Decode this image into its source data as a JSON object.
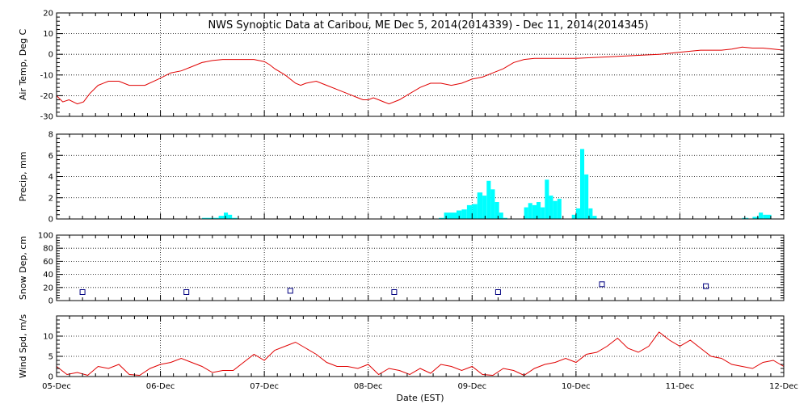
{
  "title": "NWS Synoptic Data at Caribou, ME   Dec  5, 2014(2014339) - Dec 11, 2014(2014345)",
  "xlabel": "Date (EST)",
  "x_ticks": [
    "05-Dec",
    "06-Dec",
    "07-Dec",
    "08-Dec",
    "09-Dec",
    "10-Dec",
    "11-Dec",
    "12-Dec"
  ],
  "colors": {
    "air_temp": "#e00000",
    "precip": "#00ffff",
    "snow": "#000080",
    "wind": "#e00000"
  },
  "chart_data": [
    {
      "type": "line",
      "id": "air-temp",
      "ylabel": "Air Temp, Deg C",
      "ylim": [
        -30,
        20
      ],
      "yticks": [
        -30,
        -20,
        -10,
        0,
        10,
        20
      ],
      "x_units": "days since 05-Dec 00:00 EST",
      "x": [
        0.0,
        0.06,
        0.12,
        0.2,
        0.26,
        0.32,
        0.4,
        0.5,
        0.6,
        0.7,
        0.85,
        0.98,
        1.1,
        1.2,
        1.3,
        1.4,
        1.5,
        1.6,
        1.7,
        1.8,
        1.9,
        2.0,
        2.05,
        2.1,
        2.2,
        2.3,
        2.35,
        2.4,
        2.5,
        2.6,
        2.7,
        2.8,
        2.9,
        2.95,
        3.0,
        3.05,
        3.1,
        3.15,
        3.2,
        3.3,
        3.4,
        3.5,
        3.6,
        3.7,
        3.8,
        3.9,
        4.0,
        4.1,
        4.2,
        4.3,
        4.4,
        4.5,
        4.6,
        4.8,
        5.0,
        5.2,
        5.4,
        5.6,
        5.8,
        6.0,
        6.2,
        6.4,
        6.5,
        6.6,
        6.7,
        6.8,
        6.9,
        7.0
      ],
      "values": [
        -20,
        -23,
        -22,
        -24,
        -23,
        -19,
        -15,
        -13,
        -13,
        -15,
        -15,
        -12,
        -9,
        -8,
        -6,
        -4,
        -3,
        -2.5,
        -2.5,
        -2.5,
        -2.5,
        -3.5,
        -5,
        -7,
        -10,
        -14,
        -15,
        -14,
        -13,
        -15,
        -17,
        -19,
        -21,
        -22,
        -22,
        -21,
        -22,
        -23,
        -24,
        -22,
        -19,
        -16,
        -14,
        -14,
        -15,
        -14,
        -12,
        -11,
        -9,
        -7,
        -4,
        -2.5,
        -2,
        -2,
        -2,
        -1.5,
        -1,
        -0.5,
        0,
        1,
        2,
        2,
        2.5,
        3.5,
        3,
        3,
        2.5,
        2
      ]
    },
    {
      "type": "bar",
      "id": "precip",
      "ylabel": "Precip, mm",
      "ylim": [
        0,
        8
      ],
      "yticks": [
        0,
        2,
        4,
        6,
        8
      ],
      "x_units": "days since 05-Dec 00:00 EST",
      "bars": [
        [
          1.4,
          1.56,
          0.1
        ],
        [
          1.56,
          1.61,
          0.3
        ],
        [
          1.61,
          1.65,
          0.6
        ],
        [
          1.65,
          1.69,
          0.4
        ],
        [
          1.69,
          1.74,
          0.1
        ],
        [
          3.68,
          3.73,
          0.1
        ],
        [
          3.73,
          3.85,
          0.6
        ],
        [
          3.85,
          3.9,
          0.8
        ],
        [
          3.9,
          3.95,
          0.9
        ],
        [
          3.95,
          4.0,
          1.3
        ],
        [
          4.0,
          4.05,
          1.4
        ],
        [
          4.05,
          4.1,
          2.5
        ],
        [
          4.1,
          4.14,
          2.2
        ],
        [
          4.14,
          4.18,
          3.6
        ],
        [
          4.18,
          4.22,
          2.8
        ],
        [
          4.22,
          4.26,
          1.6
        ],
        [
          4.26,
          4.3,
          0.6
        ],
        [
          4.3,
          4.34,
          0.1
        ],
        [
          4.5,
          4.54,
          1.1
        ],
        [
          4.54,
          4.58,
          1.5
        ],
        [
          4.58,
          4.62,
          1.3
        ],
        [
          4.62,
          4.66,
          1.6
        ],
        [
          4.66,
          4.7,
          1.1
        ],
        [
          4.7,
          4.74,
          3.7
        ],
        [
          4.74,
          4.78,
          2.2
        ],
        [
          4.78,
          4.82,
          1.7
        ],
        [
          4.82,
          4.86,
          1.9
        ],
        [
          4.96,
          5.0,
          0.4
        ],
        [
          5.0,
          5.04,
          1.0
        ],
        [
          5.04,
          5.08,
          6.6
        ],
        [
          5.08,
          5.12,
          4.2
        ],
        [
          5.12,
          5.16,
          1.0
        ],
        [
          5.16,
          5.2,
          0.3
        ],
        [
          6.6,
          6.66,
          0.1
        ],
        [
          6.7,
          6.76,
          0.2
        ],
        [
          6.76,
          6.8,
          0.6
        ],
        [
          6.8,
          6.88,
          0.4
        ]
      ]
    },
    {
      "type": "scatter",
      "id": "snow-depth",
      "ylabel": "Snow Dep, cm",
      "ylim": [
        0,
        100
      ],
      "yticks": [
        0,
        20,
        40,
        60,
        80,
        100
      ],
      "x_units": "days since 05-Dec 00:00 EST",
      "x": [
        0.25,
        1.25,
        2.25,
        3.25,
        4.25,
        5.25,
        6.25
      ],
      "values": [
        13,
        13,
        15,
        13,
        13,
        25,
        22
      ]
    },
    {
      "type": "line",
      "id": "wind-speed",
      "ylabel": "Wind Spd, m/s",
      "ylim": [
        0,
        15
      ],
      "yticks": [
        0,
        5,
        10
      ],
      "x_units": "days since 05-Dec 00:00 EST",
      "x": [
        0.0,
        0.1,
        0.2,
        0.3,
        0.4,
        0.5,
        0.6,
        0.7,
        0.8,
        0.9,
        1.0,
        1.1,
        1.2,
        1.3,
        1.4,
        1.5,
        1.6,
        1.7,
        1.8,
        1.9,
        2.0,
        2.1,
        2.2,
        2.3,
        2.4,
        2.5,
        2.6,
        2.7,
        2.8,
        2.9,
        3.0,
        3.1,
        3.2,
        3.3,
        3.4,
        3.5,
        3.6,
        3.7,
        3.8,
        3.9,
        4.0,
        4.1,
        4.2,
        4.3,
        4.4,
        4.5,
        4.6,
        4.7,
        4.8,
        4.9,
        5.0,
        5.1,
        5.2,
        5.3,
        5.4,
        5.5,
        5.6,
        5.7,
        5.8,
        5.9,
        6.0,
        6.1,
        6.2,
        6.3,
        6.4,
        6.5,
        6.6,
        6.7,
        6.8,
        6.9,
        7.0
      ],
      "values": [
        2.5,
        0.5,
        1.0,
        0.3,
        2.5,
        2.0,
        3.0,
        0.5,
        0.3,
        2.0,
        3.0,
        3.5,
        4.5,
        3.5,
        2.5,
        1.0,
        1.5,
        1.5,
        3.5,
        5.5,
        4.0,
        6.5,
        7.5,
        8.5,
        7.0,
        5.5,
        3.5,
        2.5,
        2.5,
        2.0,
        3.0,
        0.5,
        2.0,
        1.5,
        0.5,
        2.0,
        0.8,
        3.0,
        2.5,
        1.5,
        2.5,
        0.5,
        0.3,
        2.0,
        1.5,
        0.3,
        2.0,
        3.0,
        3.5,
        4.5,
        3.5,
        5.5,
        6.0,
        7.5,
        9.5,
        7.0,
        6.0,
        7.5,
        11.0,
        9.0,
        7.5,
        9.0,
        7.0,
        5.0,
        4.5,
        3.0,
        2.5,
        2.0,
        3.5,
        4.0,
        2.5
      ]
    }
  ]
}
